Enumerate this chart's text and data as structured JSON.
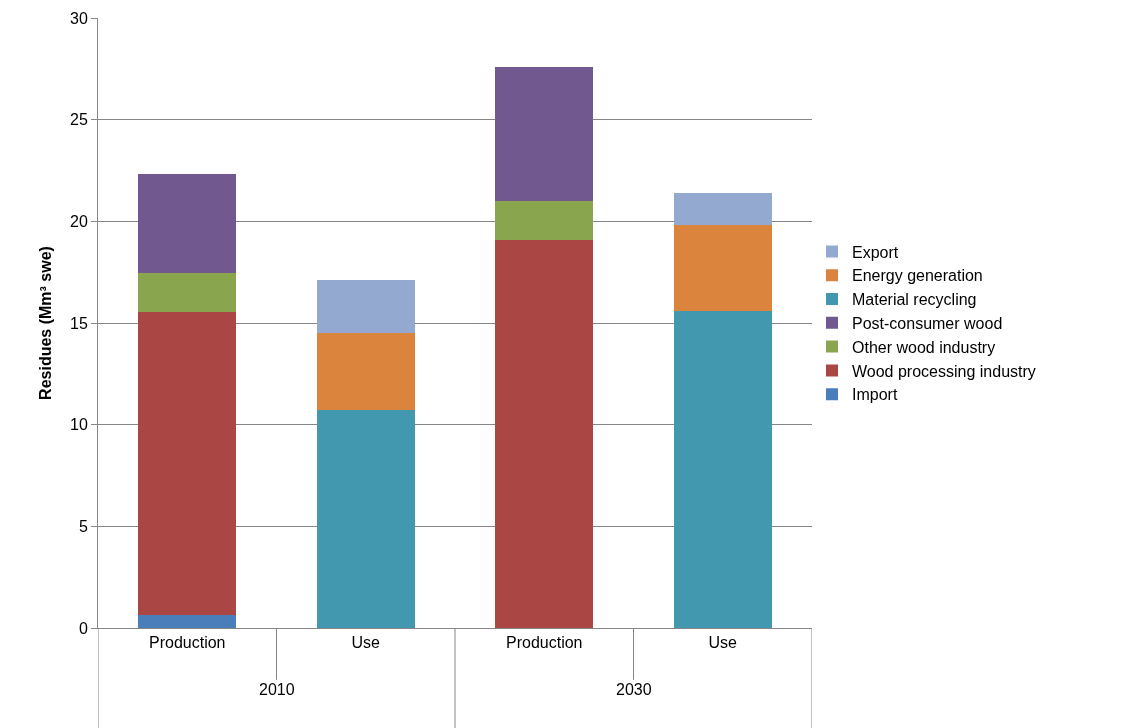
{
  "chart_data": {
    "type": "bar",
    "stacked": true,
    "ylabel": "Residues (Mm³ swe)",
    "categories": [
      "Production",
      "Use",
      "Production",
      "Use"
    ],
    "annotations": [
      "2010",
      "2030"
    ],
    "series": [
      {
        "name": "Import",
        "color": "#4a7ebb",
        "values": [
          0.65,
          0,
          0,
          0
        ]
      },
      {
        "name": "Wood processing industry",
        "color": "#aa4643",
        "values": [
          14.9,
          0,
          19.1,
          0
        ]
      },
      {
        "name": "Other wood industry",
        "color": "#89a54e",
        "values": [
          1.9,
          0,
          1.9,
          0
        ]
      },
      {
        "name": "Post-consumer wood",
        "color": "#71588f",
        "values": [
          4.9,
          0,
          6.6,
          0
        ]
      },
      {
        "name": "Material recycling",
        "color": "#4198af",
        "values": [
          0,
          10.7,
          0,
          15.6
        ]
      },
      {
        "name": "Energy generation",
        "color": "#db843d",
        "values": [
          0,
          3.8,
          0,
          4.2
        ]
      },
      {
        "name": "Export",
        "color": "#93a9cf",
        "values": [
          0,
          2.6,
          0,
          1.6
        ]
      }
    ],
    "ylim": [
      0,
      30
    ],
    "yticks": [
      0,
      5,
      10,
      15,
      20,
      25,
      30
    ],
    "grid": "y",
    "legend": "right"
  }
}
